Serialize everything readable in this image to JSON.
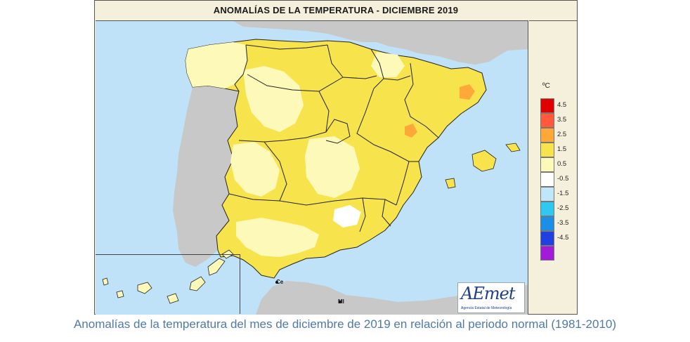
{
  "title": "ANOMALÍAS DE LA TEMPERATURA - DICIEMBRE 2019",
  "legend": {
    "unit": "ºC",
    "items": [
      {
        "label": "4.5",
        "color": "#e00000"
      },
      {
        "label": "3.5",
        "color": "#ff5a3c"
      },
      {
        "label": "2.5",
        "color": "#ffa83a"
      },
      {
        "label": "1.5",
        "color": "#f7e34b"
      },
      {
        "label": "0.5",
        "color": "#fdf9b8"
      },
      {
        "label": "-0.5",
        "color": "#ffffff"
      },
      {
        "label": "-1.5",
        "color": "#bfe6fb"
      },
      {
        "label": "-2.5",
        "color": "#2ec8f0"
      },
      {
        "label": "-3.5",
        "color": "#1b8ee8"
      },
      {
        "label": "-4.5",
        "color": "#2040e0"
      },
      {
        "label": "",
        "color": "#a21bd8"
      }
    ]
  },
  "places": {
    "ceuta": "Ce",
    "melilla": "Ml"
  },
  "logo": {
    "name": "AEmet",
    "subtitle": "Agencia Estatal de Meteorología"
  },
  "caption": "Anomalías de la temperatura del mes de diciembre de 2019 en relación al periodo normal (1981-2010)",
  "colors": {
    "sea": "#bfe2f8",
    "land_other": "#c8c8c8",
    "anomaly_0_5_1_5": "#fdf9b8",
    "anomaly_1_5_2_5": "#f7e34b",
    "anomaly_2_5_3_5": "#ffa83a"
  }
}
